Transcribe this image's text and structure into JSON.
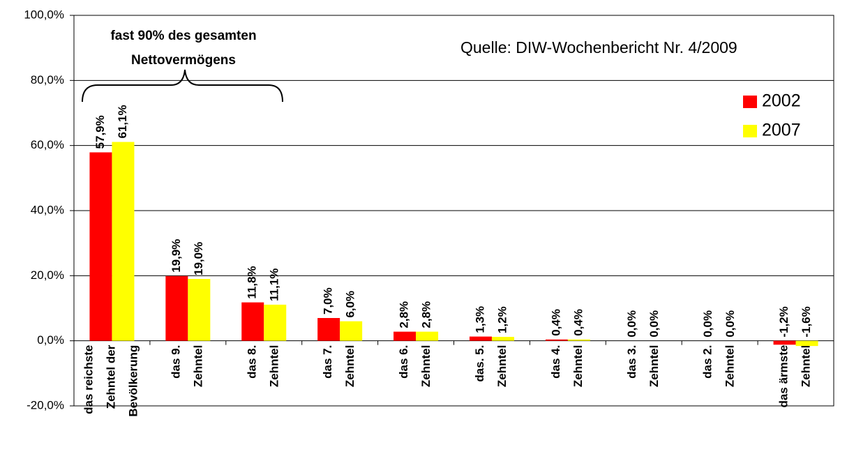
{
  "chart_data": {
    "type": "bar",
    "annotations": [
      "fast 90% des gesamten",
      "Nettovermögens"
    ],
    "source": "Quelle: DIW-Wochenbericht Nr. 4/2009",
    "categories": [
      "das reichste\nZehntel der\nBevölkerung",
      "das 9.\nZehntel",
      "das 8.\nZehntel",
      "das 7.\nZehntel",
      "das 6.\nZehntel",
      "das. 5.\nZehntel",
      "das 4.\nZehntel",
      "das 3.\nZehntel",
      "das 2.\nZehntel",
      "das ärmste\nZehntel"
    ],
    "series": [
      {
        "name": "2002",
        "color": "#ff0000",
        "values": [
          57.9,
          19.9,
          11.8,
          7.0,
          2.8,
          1.3,
          0.4,
          0.0,
          0.0,
          -1.2
        ],
        "value_labels": [
          "57,9%",
          "19,9%",
          "11,8%",
          "7,0%",
          "2,8%",
          "1,3%",
          "0,4%",
          "0,0%",
          "0,0%",
          "-1,2%"
        ]
      },
      {
        "name": "2007",
        "color": "#ffff00",
        "values": [
          61.1,
          19.0,
          11.1,
          6.0,
          2.8,
          1.2,
          0.4,
          0.0,
          0.0,
          -1.6
        ],
        "value_labels": [
          "61,1%",
          "19,0%",
          "11,1%",
          "6,0%",
          "2,8%",
          "1,2%",
          "0,4%",
          "0,0%",
          "0,0%",
          "-1,6%"
        ]
      }
    ],
    "ylim": [
      -20,
      100
    ],
    "yticks": [
      {
        "value": -20,
        "label": "-20,0%"
      },
      {
        "value": 0,
        "label": "0,0%"
      },
      {
        "value": 20,
        "label": "20,0%"
      },
      {
        "value": 40,
        "label": "40,0%"
      },
      {
        "value": 60,
        "label": "60,0%"
      },
      {
        "value": 80,
        "label": "80,0%"
      },
      {
        "value": 100,
        "label": "100,0%"
      }
    ],
    "grid": true,
    "legend": "right"
  }
}
